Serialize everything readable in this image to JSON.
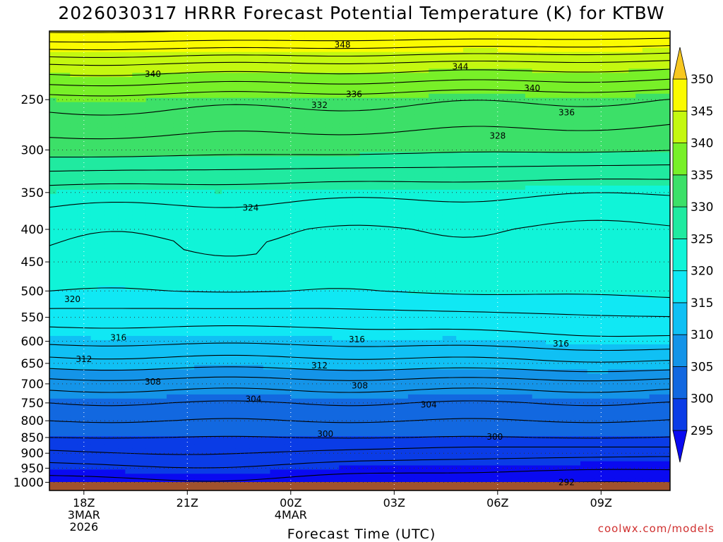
{
  "chart_data": {
    "type": "heatmap",
    "title": "2026030317 HRRR Forecast Potential Temperature (K) for KTBW",
    "xlabel": "Forecast Time (UTC)",
    "ylabel": "",
    "y_scale": "log-pressure",
    "y_axis_inverted": true,
    "ylim": [
      1030,
      195
    ],
    "xlim": [
      "2026-03-03T17:00Z",
      "2026-03-04T11:00Z"
    ],
    "y_ticks": [
      250,
      300,
      350,
      400,
      450,
      500,
      550,
      600,
      650,
      700,
      750,
      800,
      850,
      900,
      950,
      1000
    ],
    "x_ticks": [
      {
        "time": "2026-03-03T18:00Z",
        "label": "18Z",
        "sub1": "3MAR",
        "sub2": "2026"
      },
      {
        "time": "2026-03-03T21:00Z",
        "label": "21Z",
        "sub1": "",
        "sub2": ""
      },
      {
        "time": "2026-03-04T00:00Z",
        "label": "00Z",
        "sub1": "4MAR",
        "sub2": ""
      },
      {
        "time": "2026-03-04T03:00Z",
        "label": "03Z",
        "sub1": "",
        "sub2": ""
      },
      {
        "time": "2026-03-04T06:00Z",
        "label": "06Z",
        "sub1": "",
        "sub2": ""
      },
      {
        "time": "2026-03-04T09:00Z",
        "label": "09Z",
        "sub1": "",
        "sub2": ""
      }
    ],
    "grid": true,
    "colorbar": {
      "placement": "right",
      "levels": [
        295,
        300,
        305,
        310,
        315,
        320,
        325,
        330,
        335,
        340,
        345,
        350
      ],
      "colors": [
        "#0a0af0",
        "#0a3ce6",
        "#1268e0",
        "#1494e8",
        "#10c0f4",
        "#10e8f4",
        "#10f4d8",
        "#20eaa0",
        "#3ce068",
        "#78f028",
        "#c4f810",
        "#fbfb00",
        "#f8c820"
      ]
    },
    "contour_interval": 2,
    "contour_labels": [
      {
        "value": 348,
        "time": "2026-03-04T01:30Z",
        "pressure": 205
      },
      {
        "value": 344,
        "time": "2026-03-04T04:55Z",
        "pressure": 222
      },
      {
        "value": 340,
        "time": "2026-03-03T20:00Z",
        "pressure": 228
      },
      {
        "value": 340,
        "time": "2026-03-04T07:00Z",
        "pressure": 240
      },
      {
        "value": 336,
        "time": "2026-03-04T01:50Z",
        "pressure": 245
      },
      {
        "value": 336,
        "time": "2026-03-04T08:00Z",
        "pressure": 262
      },
      {
        "value": 332,
        "time": "2026-03-04T00:50Z",
        "pressure": 255
      },
      {
        "value": 328,
        "time": "2026-03-04T06:00Z",
        "pressure": 285
      },
      {
        "value": 324,
        "time": "2026-03-03T22:50Z",
        "pressure": 370
      },
      {
        "value": 320,
        "time": "2026-03-03T17:40Z",
        "pressure": 515
      },
      {
        "value": 316,
        "time": "2026-03-03T19:00Z",
        "pressure": 592
      },
      {
        "value": 316,
        "time": "2026-03-04T01:55Z",
        "pressure": 596
      },
      {
        "value": 316,
        "time": "2026-03-04T07:50Z",
        "pressure": 605
      },
      {
        "value": 312,
        "time": "2026-03-03T18:00Z",
        "pressure": 640
      },
      {
        "value": 312,
        "time": "2026-03-04T00:50Z",
        "pressure": 655
      },
      {
        "value": 308,
        "time": "2026-03-03T20:00Z",
        "pressure": 695
      },
      {
        "value": 308,
        "time": "2026-03-04T02:00Z",
        "pressure": 705
      },
      {
        "value": 304,
        "time": "2026-03-03T22:55Z",
        "pressure": 740
      },
      {
        "value": 304,
        "time": "2026-03-04T04:00Z",
        "pressure": 755
      },
      {
        "value": 300,
        "time": "2026-03-04T01:00Z",
        "pressure": 840
      },
      {
        "value": 300,
        "time": "2026-03-04T05:55Z",
        "pressure": 848
      },
      {
        "value": 292,
        "time": "2026-03-04T08:00Z",
        "pressure": 1000
      }
    ],
    "ground_color": "#a0522d"
  },
  "credit": "coolwx.com/models"
}
